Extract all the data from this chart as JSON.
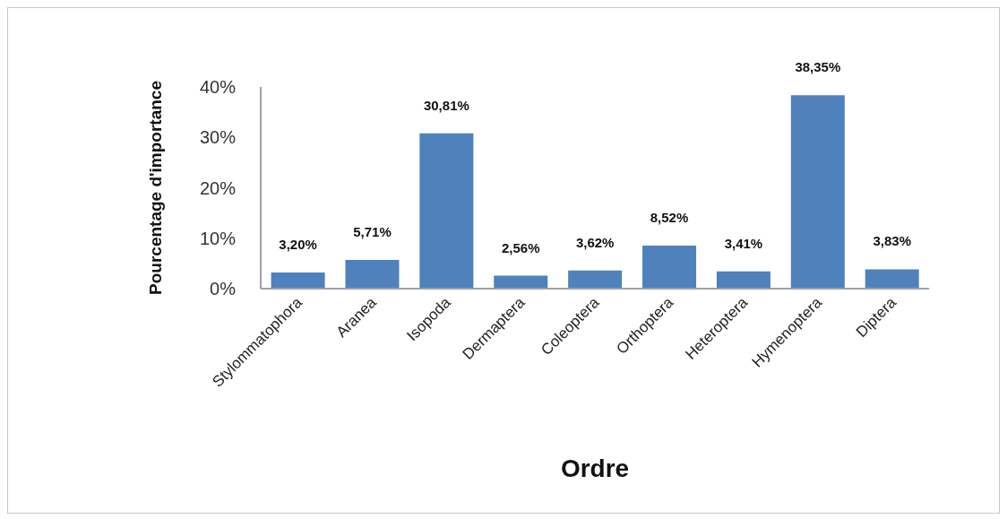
{
  "chart_data": {
    "type": "bar",
    "xlabel": "Ordre",
    "ylabel": "Pourcentage d'importance",
    "categories": [
      "Stylommatophora",
      "Aranea",
      "Isopoda",
      "Dermaptera",
      "Coleoptera",
      "Orthoptera",
      "Heteroptera",
      "Hymenoptera",
      "Diptera"
    ],
    "values": [
      3.2,
      5.71,
      30.81,
      2.56,
      3.62,
      8.52,
      3.41,
      38.35,
      3.83
    ],
    "value_labels": [
      "3,20%",
      "5,71%",
      "30,81%",
      "2,56%",
      "3,62%",
      "8,52%",
      "3,41%",
      "38,35%",
      "3,83%"
    ],
    "color": "#4f81bd",
    "ylim": [
      0,
      40
    ],
    "yticks": [
      {
        "value": 0,
        "label": "0%"
      },
      {
        "value": 10,
        "label": "10%"
      },
      {
        "value": 20,
        "label": "20%"
      },
      {
        "value": 30,
        "label": "30%"
      },
      {
        "value": 40,
        "label": "40%"
      }
    ]
  }
}
